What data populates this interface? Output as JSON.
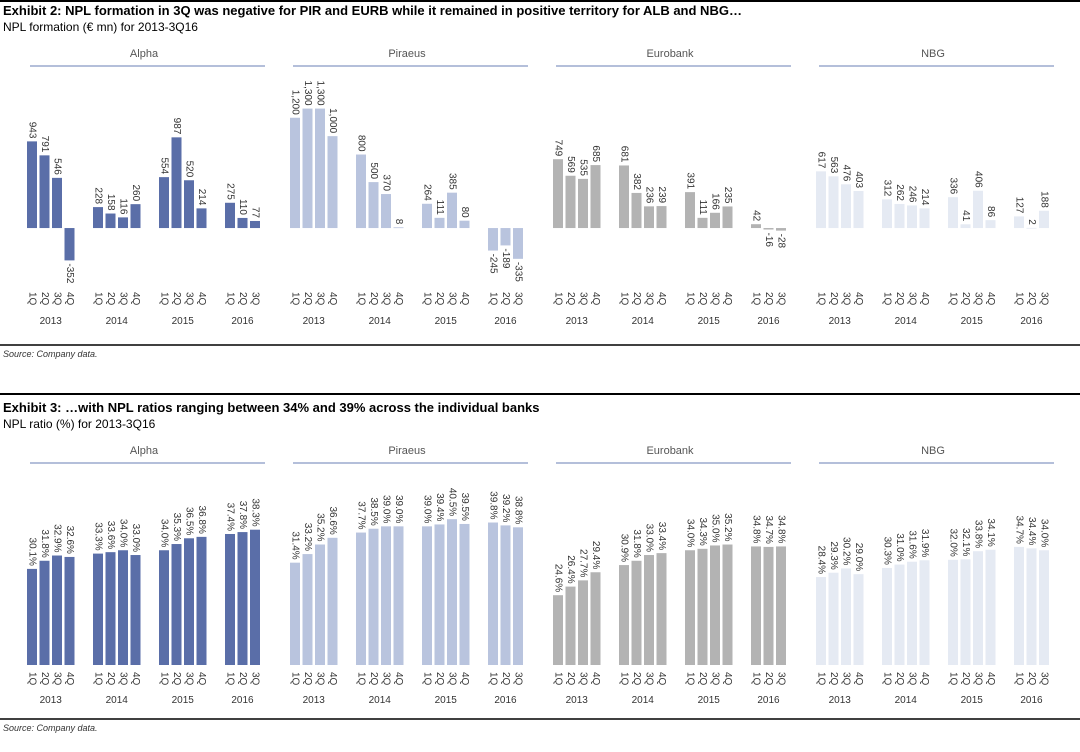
{
  "exhibits": [
    {
      "title": "Exhibit 2: NPL formation in 3Q was negative for PIR and EURB while it remained in positive territory for ALB and NBG…",
      "subtitle": "NPL formation (€ mn) for 2013-3Q16",
      "source": "Source: Company data."
    },
    {
      "title": "Exhibit 3: …with NPL ratios ranging between 34% and 39% across the individual banks",
      "subtitle": "NPL ratio (%) for 2013-3Q16",
      "source": "Source: Company data."
    }
  ],
  "chart_data": [
    {
      "type": "bar",
      "title": "Alpha",
      "color": "#5a6ea8",
      "ylim": [
        -500,
        1600
      ],
      "years": [
        "2013",
        "2014",
        "2015",
        "2016"
      ],
      "categories": [
        "1Q",
        "2Q",
        "3Q",
        "4Q",
        "1Q",
        "2Q",
        "3Q",
        "4Q",
        "1Q",
        "2Q",
        "3Q",
        "4Q",
        "1Q",
        "2Q",
        "3Q"
      ],
      "values": [
        943,
        791,
        546,
        -352,
        228,
        158,
        116,
        260,
        554,
        987,
        520,
        214,
        275,
        110,
        77
      ],
      "value_labels": [
        "943",
        "791",
        "546",
        "-352",
        "228",
        "158",
        "116",
        "260",
        "554",
        "987",
        "520",
        "214",
        "275",
        "110",
        "77"
      ]
    },
    {
      "type": "bar",
      "title": "Piraeus",
      "color": "#b9c4de",
      "ylim": [
        -500,
        1600
      ],
      "years": [
        "2013",
        "2014",
        "2015",
        "2016"
      ],
      "categories": [
        "1Q",
        "2Q",
        "3Q",
        "4Q",
        "1Q",
        "2Q",
        "3Q",
        "4Q",
        "1Q",
        "2Q",
        "3Q",
        "4Q",
        "1Q",
        "2Q",
        "3Q"
      ],
      "values": [
        1200,
        1300,
        1300,
        1000,
        800,
        500,
        370,
        8,
        264,
        111,
        385,
        80,
        -245,
        -189,
        -335
      ],
      "value_labels": [
        "1,200",
        "1,300",
        "1,300",
        "1,000",
        "800",
        "500",
        "370",
        "8",
        "264",
        "111",
        "385",
        "80",
        "-245",
        "-189",
        "-335"
      ]
    },
    {
      "type": "bar",
      "title": "Eurobank",
      "color": "#b3b3b3",
      "ylim": [
        -500,
        1600
      ],
      "years": [
        "2013",
        "2014",
        "2015",
        "2016"
      ],
      "categories": [
        "1Q",
        "2Q",
        "3Q",
        "4Q",
        "1Q",
        "2Q",
        "3Q",
        "4Q",
        "1Q",
        "2Q",
        "3Q",
        "4Q",
        "1Q",
        "2Q",
        "3Q"
      ],
      "values": [
        749,
        569,
        535,
        685,
        681,
        382,
        236,
        239,
        391,
        111,
        166,
        235,
        42,
        -16,
        -28
      ],
      "value_labels": [
        "749",
        "569",
        "535",
        "685",
        "681",
        "382",
        "236",
        "239",
        "391",
        "111",
        "166",
        "235",
        "42",
        "-16",
        "-28"
      ]
    },
    {
      "type": "bar",
      "title": "NBG",
      "color": "#e5eaf3",
      "ylim": [
        -500,
        1600
      ],
      "years": [
        "2013",
        "2014",
        "2015",
        "2016"
      ],
      "categories": [
        "1Q",
        "2Q",
        "3Q",
        "4Q",
        "1Q",
        "2Q",
        "3Q",
        "4Q",
        "1Q",
        "2Q",
        "3Q",
        "4Q",
        "1Q",
        "2Q",
        "3Q"
      ],
      "values": [
        617,
        563,
        476,
        403,
        312,
        262,
        246,
        214,
        336,
        41,
        406,
        86,
        127,
        2,
        188
      ],
      "value_labels": [
        "617",
        "563",
        "476",
        "403",
        "312",
        "262",
        "246",
        "214",
        "336",
        "41",
        "406",
        "86",
        "127",
        "2",
        "188"
      ]
    },
    {
      "type": "bar",
      "title": "Alpha",
      "color": "#5a6ea8",
      "ylim": [
        10,
        42
      ],
      "years": [
        "2013",
        "2014",
        "2015",
        "2016"
      ],
      "categories": [
        "1Q",
        "2Q",
        "3Q",
        "4Q",
        "1Q",
        "2Q",
        "3Q",
        "4Q",
        "1Q",
        "2Q",
        "3Q",
        "4Q",
        "1Q",
        "2Q",
        "3Q"
      ],
      "values": [
        30.1,
        31.8,
        32.9,
        32.6,
        33.3,
        33.6,
        34.0,
        33.0,
        34.0,
        35.3,
        36.5,
        36.8,
        37.4,
        37.8,
        38.3
      ],
      "value_labels": [
        "30.1%",
        "31.8%",
        "32.9%",
        "32.6%",
        "33.3%",
        "33.6%",
        "34.0%",
        "33.0%",
        "34.0%",
        "35.3%",
        "36.5%",
        "36.8%",
        "37.4%",
        "37.8%",
        "38.3%"
      ]
    },
    {
      "type": "bar",
      "title": "Piraeus",
      "color": "#b9c4de",
      "ylim": [
        10,
        42
      ],
      "years": [
        "2013",
        "2014",
        "2015",
        "2016"
      ],
      "categories": [
        "1Q",
        "2Q",
        "3Q",
        "4Q",
        "1Q",
        "2Q",
        "3Q",
        "4Q",
        "1Q",
        "2Q",
        "3Q",
        "4Q",
        "1Q",
        "2Q",
        "3Q"
      ],
      "values": [
        31.4,
        33.2,
        35.2,
        36.6,
        37.7,
        38.5,
        39.0,
        39.0,
        39.0,
        39.4,
        40.5,
        39.5,
        39.8,
        39.2,
        38.8
      ],
      "value_labels": [
        "31.4%",
        "33.2%",
        "35.2%",
        "36.6%",
        "37.7%",
        "38.5%",
        "39.0%",
        "39.0%",
        "39.0%",
        "39.4%",
        "40.5%",
        "39.5%",
        "39.8%",
        "39.2%",
        "38.8%"
      ]
    },
    {
      "type": "bar",
      "title": "Eurobank",
      "color": "#b3b3b3",
      "ylim": [
        10,
        42
      ],
      "years": [
        "2013",
        "2014",
        "2015",
        "2016"
      ],
      "categories": [
        "1Q",
        "2Q",
        "3Q",
        "4Q",
        "1Q",
        "2Q",
        "3Q",
        "4Q",
        "1Q",
        "2Q",
        "3Q",
        "4Q",
        "1Q",
        "2Q",
        "3Q"
      ],
      "values": [
        24.6,
        26.4,
        27.7,
        29.4,
        30.9,
        31.8,
        33.0,
        33.4,
        34.0,
        34.3,
        35.0,
        35.2,
        34.8,
        34.7,
        34.8
      ],
      "value_labels": [
        "24.6%",
        "26.4%",
        "27.7%",
        "29.4%",
        "30.9%",
        "31.8%",
        "33.0%",
        "33.4%",
        "34.0%",
        "34.3%",
        "35.0%",
        "35.2%",
        "34.8%",
        "34.7%",
        "34.8%"
      ]
    },
    {
      "type": "bar",
      "title": "NBG",
      "color": "#e5eaf3",
      "ylim": [
        10,
        42
      ],
      "years": [
        "2013",
        "2014",
        "2015",
        "2016"
      ],
      "categories": [
        "1Q",
        "2Q",
        "3Q",
        "4Q",
        "1Q",
        "2Q",
        "3Q",
        "4Q",
        "1Q",
        "2Q",
        "3Q",
        "4Q",
        "1Q",
        "2Q",
        "3Q"
      ],
      "values": [
        28.4,
        29.3,
        30.2,
        29.0,
        30.3,
        31.0,
        31.6,
        31.9,
        32.0,
        32.1,
        33.8,
        34.1,
        34.7,
        34.4,
        34.0
      ],
      "value_labels": [
        "28.4%",
        "29.3%",
        "30.2%",
        "29.0%",
        "30.3%",
        "31.0%",
        "31.6%",
        "31.9%",
        "32.0%",
        "32.1%",
        "33.8%",
        "34.1%",
        "34.7%",
        "34.4%",
        "34.0%"
      ]
    }
  ]
}
